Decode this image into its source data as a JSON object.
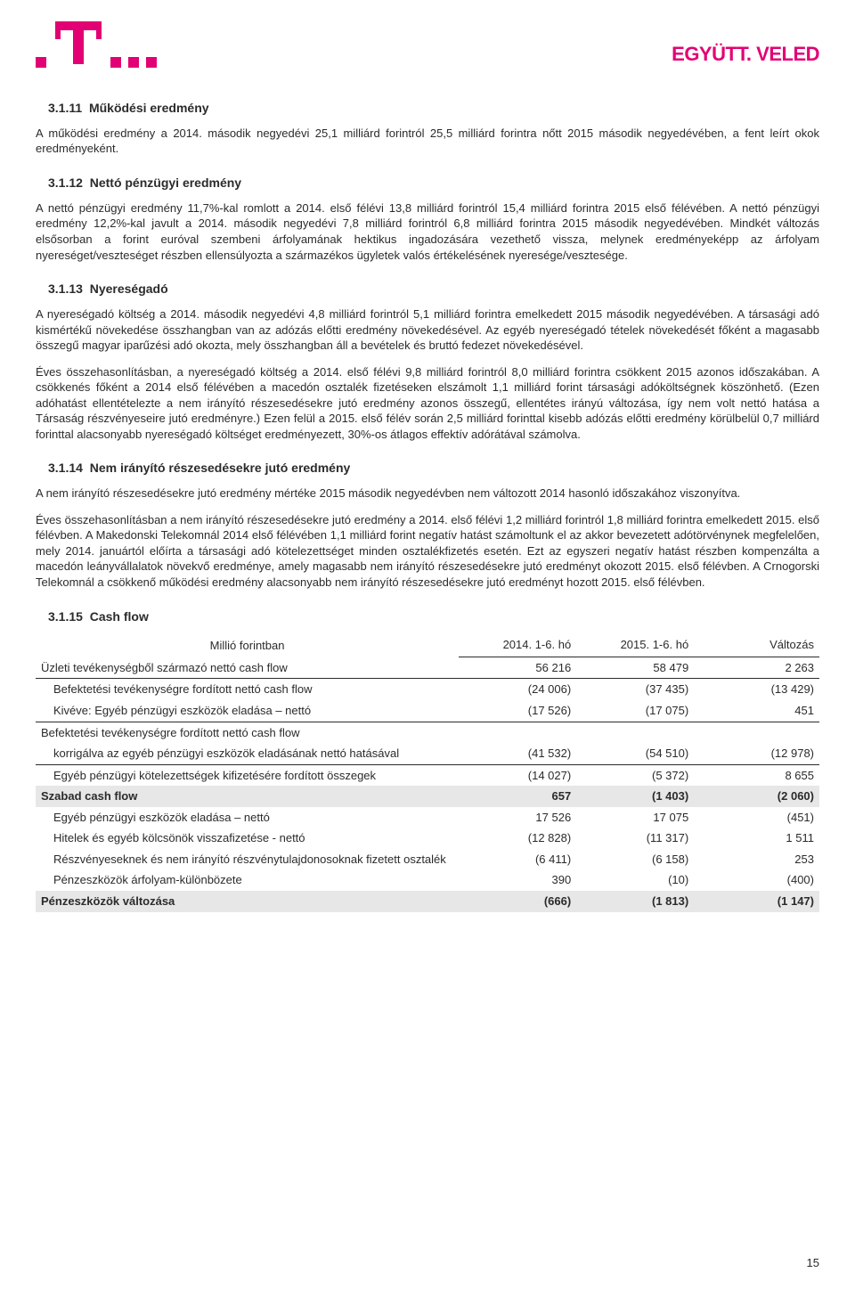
{
  "brand": {
    "magenta": "#e20074",
    "tagline": "EGYÜTT. VELED"
  },
  "sections": {
    "s1": {
      "num": "3.1.11",
      "title": "Működési eredmény"
    },
    "s2": {
      "num": "3.1.12",
      "title": "Nettó pénzügyi eredmény"
    },
    "s3": {
      "num": "3.1.13",
      "title": "Nyereségadó"
    },
    "s4": {
      "num": "3.1.14",
      "title": "Nem irányító részesedésekre jutó eredmény"
    },
    "s5": {
      "num": "3.1.15",
      "title": "Cash flow"
    }
  },
  "paras": {
    "p1": "A működési eredmény a 2014. második negyedévi 25,1 milliárd forintról 25,5 milliárd forintra nőtt 2015 második negyedévében, a fent leírt okok eredményeként.",
    "p2": "A nettó pénzügyi eredmény 11,7%-kal romlott a 2014. első félévi 13,8 milliárd forintról 15,4 milliárd forintra 2015 első félévében. A nettó pénzügyi eredmény 12,2%-kal javult a 2014. második negyedévi 7,8 milliárd forintról 6,8 milliárd forintra 2015 második negyedévében. Mindkét változás elsősorban a forint euróval szembeni árfolyamának hektikus ingadozására vezethető vissza, melynek eredményeképp az árfolyam nyereséget/veszteséget részben ellensúlyozta a származékos ügyletek valós értékelésének nyeresége/vesztesége.",
    "p3": "A nyereségadó költség a 2014. második negyedévi 4,8 milliárd forintról 5,1 milliárd forintra emelkedett 2015 második negyedévében. A társasági adó kismértékű növekedése összhangban van az adózás előtti eredmény növekedésével. Az egyéb nyereségadó tételek növekedését főként a magasabb összegű magyar iparűzési adó okozta, mely összhangban áll a bevételek és bruttó fedezet növekedésével.",
    "p4": "Éves összehasonlításban, a nyereségadó költség a 2014. első félévi 9,8 milliárd forintról 8,0 milliárd forintra csökkent 2015 azonos időszakában. A csökkenés főként a 2014 első félévében a macedón osztalék fizetéseken elszámolt 1,1 milliárd forint társasági adóköltségnek köszönhető. (Ezen adóhatást ellentételezte a nem irányító részesedésekre jutó eredmény azonos összegű, ellentétes irányú változása, így nem volt nettó hatása a Társaság részvényeseire jutó eredményre.) Ezen felül a 2015. első félév során 2,5 milliárd forinttal kisebb adózás előtti eredmény körülbelül 0,7 milliárd forinttal alacsonyabb nyereségadó költséget eredményezett, 30%-os átlagos effektív adórátával számolva.",
    "p5": "A nem irányító részesedésekre jutó eredmény mértéke 2015 második negyedévben nem változott 2014 hasonló időszakához viszonyítva.",
    "p6": "Éves összehasonlításban a nem irányító részesedésekre jutó eredmény a 2014. első félévi 1,2 milliárd forintról 1,8 milliárd forintra emelkedett 2015. első félévben. A Makedonski Telekomnál 2014 első félévében 1,1 milliárd forint negatív hatást számoltunk el az akkor bevezetett adótörvénynek megfelelően, mely 2014. januártól előírta a társasági adó kötelezettséget minden osztalékfizetés esetén. Ezt az egyszeri negatív hatást részben kompenzálta a macedón leányvállalatok növekvő eredménye, amely magasabb nem irányító részesedésekre jutó eredményt okozott 2015. első félévben. A Crnogorski Telekomnál a csökkenő működési eredmény alacsonyabb nem irányító részesedésekre jutó eredményt hozott 2015. első félévben."
  },
  "table": {
    "header_label": "Millió forintban",
    "header_c1": "2014. 1-6. hó",
    "header_c2": "2015. 1-6. hó",
    "header_c3": "Változás",
    "rows": [
      {
        "label": "Üzleti tevékenységből származó nettó cash flow",
        "c1": "56 216",
        "c2": "58 479",
        "c3": "2 263",
        "indent": false,
        "rule": true
      },
      {
        "label": "Befektetési tevékenységre fordított nettó cash flow",
        "c1": "(24 006)",
        "c2": "(37 435)",
        "c3": "(13 429)",
        "indent": true,
        "rule": false
      },
      {
        "label": "Kivéve: Egyéb pénzügyi eszközök eladása – nettó",
        "c1": "(17 526)",
        "c2": "(17 075)",
        "c3": "451",
        "indent": true,
        "rule": true
      },
      {
        "label": "Befektetési tevékenységre fordított nettó cash flow",
        "c1": "",
        "c2": "",
        "c3": "",
        "indent": false,
        "rule": false
      },
      {
        "label": "korrigálva az egyéb pénzügyi eszközök eladásának nettó hatásával",
        "c1": "(41 532)",
        "c2": "(54 510)",
        "c3": "(12 978)",
        "indent": true,
        "rule": true
      },
      {
        "label": "Egyéb pénzügyi kötelezettségek kifizetésére fordított összegek",
        "c1": "(14 027)",
        "c2": "(5 372)",
        "c3": "8 655",
        "indent": true,
        "rule": false
      }
    ],
    "free_cf": {
      "label": "Szabad cash flow",
      "c1": "657",
      "c2": "(1 403)",
      "c3": "(2 060)"
    },
    "rows2": [
      {
        "label": "Egyéb pénzügyi eszközök eladása – nettó",
        "c1": "17 526",
        "c2": "17 075",
        "c3": "(451)",
        "indent": true,
        "rule": false
      },
      {
        "label": "Hitelek és egyéb kölcsönök visszafizetése - nettó",
        "c1": "(12 828)",
        "c2": "(11 317)",
        "c3": "1 511",
        "indent": true,
        "rule": false
      },
      {
        "label": "Részvényeseknek és nem irányító részvénytulajdonosoknak fizetett osztalék",
        "c1": "(6 411)",
        "c2": "(6 158)",
        "c3": "253",
        "indent": true,
        "rule": false
      },
      {
        "label": "Pénzeszközök árfolyam-különbözete",
        "c1": "390",
        "c2": "(10)",
        "c3": "(400)",
        "indent": true,
        "rule": false
      }
    ],
    "cash_change": {
      "label": "Pénzeszközök változása",
      "c1": "(666)",
      "c2": "(1 813)",
      "c3": "(1 147)"
    }
  },
  "page_num": "15"
}
